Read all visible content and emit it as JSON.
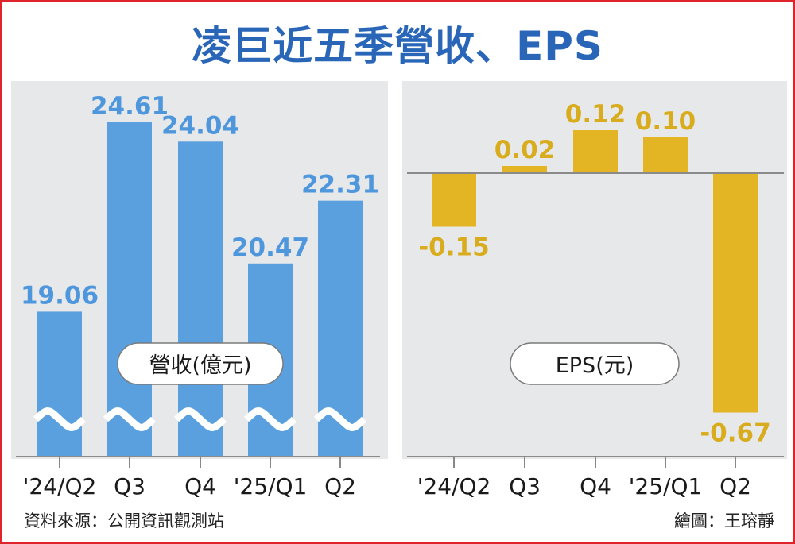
{
  "title": "凌巨近五季營收、EPS",
  "source": "資料來源：公開資訊觀測站",
  "author": "繪圖：王瑢靜",
  "colors": {
    "revenue_bar": "#5ba0de",
    "revenue_label": "#4f97dc",
    "eps_bar": "#e3b525",
    "eps_label": "#d8ac1c",
    "title": "#2a66b8",
    "panel": "#e7e8ea",
    "border": "#e0242b"
  },
  "chart_data": [
    {
      "type": "bar",
      "title": "營收(億元)",
      "categories": [
        "'24/Q2",
        "Q3",
        "Q4",
        "'25/Q1",
        "Q2"
      ],
      "values": [
        19.06,
        24.61,
        24.04,
        20.47,
        22.31
      ],
      "labels": [
        "19.06",
        "24.61",
        "24.04",
        "20.47",
        "22.31"
      ],
      "axis_break": true,
      "legend": "center-left"
    },
    {
      "type": "bar",
      "title": "EPS(元)",
      "categories": [
        "'24/Q2",
        "Q3",
        "Q4",
        "'25/Q1",
        "Q2"
      ],
      "values": [
        -0.15,
        0.02,
        0.12,
        0.1,
        -0.67
      ],
      "labels": [
        "-0.15",
        "0.02",
        "0.12",
        "0.10",
        "-0.67"
      ],
      "zero_line": true,
      "legend": "center-left"
    }
  ]
}
